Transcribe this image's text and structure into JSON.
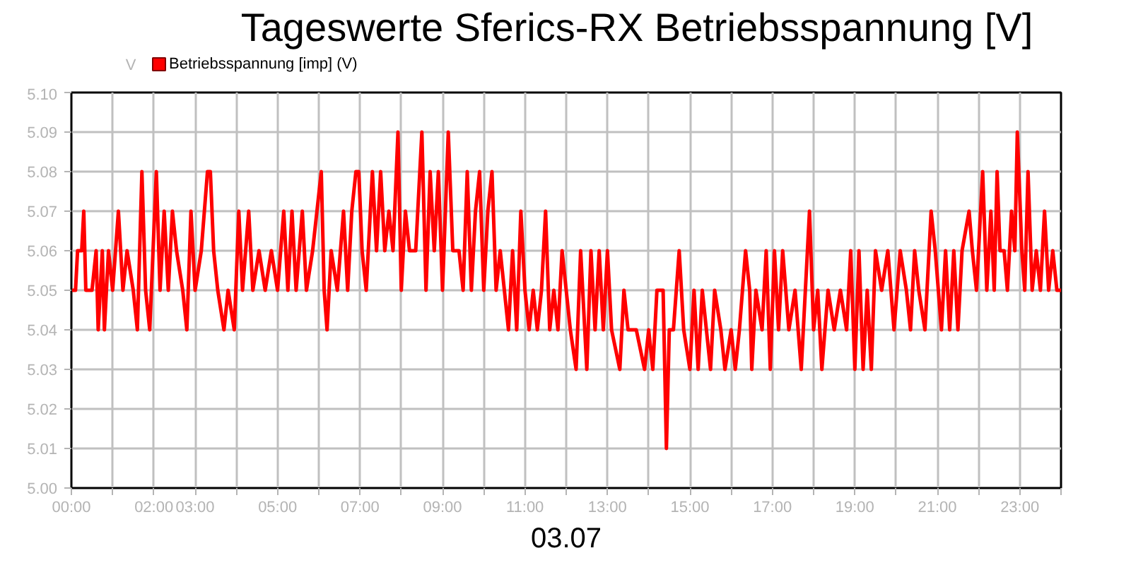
{
  "chart_data": {
    "type": "line",
    "title": "Tageswerte Sferics-RX Betriebsspannung [V]",
    "xlabel": "03.07",
    "ylabel": "V",
    "legend": "top left",
    "grid": true,
    "xlim": [
      0,
      24
    ],
    "ylim": [
      5.0,
      5.1
    ],
    "xticks": [
      {
        "value": 0,
        "label": "00:00"
      },
      {
        "value": 1,
        "label": null
      },
      {
        "value": 2,
        "label": "02:00"
      },
      {
        "value": 3,
        "label": "03:00"
      },
      {
        "value": 4,
        "label": null
      },
      {
        "value": 5,
        "label": "05:00"
      },
      {
        "value": 6,
        "label": null
      },
      {
        "value": 7,
        "label": "07:00"
      },
      {
        "value": 8,
        "label": null
      },
      {
        "value": 9,
        "label": "09:00"
      },
      {
        "value": 10,
        "label": null
      },
      {
        "value": 11,
        "label": "11:00"
      },
      {
        "value": 12,
        "label": null
      },
      {
        "value": 13,
        "label": "13:00"
      },
      {
        "value": 14,
        "label": null
      },
      {
        "value": 15,
        "label": "15:00"
      },
      {
        "value": 16,
        "label": null
      },
      {
        "value": 17,
        "label": "17:00"
      },
      {
        "value": 18,
        "label": null
      },
      {
        "value": 19,
        "label": "19:00"
      },
      {
        "value": 20,
        "label": null
      },
      {
        "value": 21,
        "label": "21:00"
      },
      {
        "value": 22,
        "label": null
      },
      {
        "value": 23,
        "label": "23:00"
      },
      {
        "value": 24,
        "label": null
      }
    ],
    "yticks": [
      {
        "value": 5.0,
        "label": "5.00"
      },
      {
        "value": 5.01,
        "label": "5.01"
      },
      {
        "value": 5.02,
        "label": "5.02"
      },
      {
        "value": 5.03,
        "label": "5.03"
      },
      {
        "value": 5.04,
        "label": "5.04"
      },
      {
        "value": 5.05,
        "label": "5.05"
      },
      {
        "value": 5.06,
        "label": "5.06"
      },
      {
        "value": 5.07,
        "label": "5.07"
      },
      {
        "value": 5.08,
        "label": "5.08"
      },
      {
        "value": 5.09,
        "label": "5.09"
      },
      {
        "value": 5.1,
        "label": "5.10"
      }
    ],
    "x": [
      0.0,
      0.1,
      0.15,
      0.25,
      0.3,
      0.35,
      0.5,
      0.6,
      0.65,
      0.75,
      0.8,
      0.9,
      1.0,
      1.14,
      1.25,
      1.35,
      1.5,
      1.6,
      1.71,
      1.8,
      1.9,
      2.06,
      2.15,
      2.25,
      2.35,
      2.45,
      2.55,
      2.7,
      2.8,
      2.9,
      3.0,
      3.15,
      3.3,
      3.37,
      3.45,
      3.55,
      3.7,
      3.8,
      3.95,
      4.06,
      4.15,
      4.3,
      4.4,
      4.55,
      4.7,
      4.85,
      5.0,
      5.15,
      5.25,
      5.35,
      5.45,
      5.6,
      5.7,
      5.85,
      6.06,
      6.13,
      6.2,
      6.3,
      6.45,
      6.6,
      6.7,
      6.8,
      6.9,
      6.97,
      7.05,
      7.15,
      7.3,
      7.4,
      7.5,
      7.6,
      7.7,
      7.8,
      7.92,
      8.0,
      8.1,
      8.2,
      8.35,
      8.5,
      8.6,
      8.7,
      8.8,
      8.9,
      9.0,
      9.14,
      9.25,
      9.4,
      9.5,
      9.6,
      9.7,
      9.8,
      9.9,
      10.0,
      10.1,
      10.2,
      10.3,
      10.4,
      10.5,
      10.6,
      10.7,
      10.8,
      10.9,
      11.0,
      11.1,
      11.2,
      11.3,
      11.4,
      11.5,
      11.6,
      11.7,
      11.8,
      11.9,
      12.0,
      12.1,
      12.24,
      12.35,
      12.5,
      12.6,
      12.7,
      12.8,
      12.9,
      13.0,
      13.1,
      13.3,
      13.4,
      13.5,
      13.7,
      13.9,
      14.0,
      14.1,
      14.2,
      14.35,
      14.43,
      14.5,
      14.6,
      14.74,
      14.85,
      15.0,
      15.1,
      15.2,
      15.3,
      15.5,
      15.6,
      15.75,
      15.85,
      16.0,
      16.1,
      16.2,
      16.35,
      16.45,
      16.5,
      16.6,
      16.75,
      16.85,
      16.95,
      17.05,
      17.15,
      17.25,
      17.4,
      17.55,
      17.7,
      17.9,
      18.0,
      18.1,
      18.2,
      18.35,
      18.5,
      18.65,
      18.8,
      18.9,
      19.0,
      19.1,
      19.2,
      19.3,
      19.4,
      19.5,
      19.65,
      19.8,
      19.95,
      20.1,
      20.25,
      20.35,
      20.45,
      20.55,
      20.7,
      20.85,
      20.95,
      21.1,
      21.2,
      21.3,
      21.4,
      21.5,
      21.6,
      21.77,
      21.85,
      21.95,
      22.1,
      22.2,
      22.3,
      22.38,
      22.45,
      22.52,
      22.62,
      22.7,
      22.8,
      22.88,
      22.94,
      23.05,
      23.12,
      23.2,
      23.3,
      23.4,
      23.5,
      23.6,
      23.7,
      23.8,
      23.9,
      24.0
    ],
    "series": [
      {
        "name": "Betriebsspannung [imp] (V)",
        "color": "#ff0000",
        "values": [
          5.05,
          5.05,
          5.06,
          5.06,
          5.07,
          5.05,
          5.05,
          5.06,
          5.04,
          5.06,
          5.04,
          5.06,
          5.05,
          5.07,
          5.05,
          5.06,
          5.05,
          5.04,
          5.08,
          5.05,
          5.04,
          5.08,
          5.05,
          5.07,
          5.05,
          5.07,
          5.06,
          5.05,
          5.04,
          5.07,
          5.05,
          5.06,
          5.08,
          5.08,
          5.06,
          5.05,
          5.04,
          5.05,
          5.04,
          5.07,
          5.05,
          5.07,
          5.05,
          5.06,
          5.05,
          5.06,
          5.05,
          5.07,
          5.05,
          5.07,
          5.05,
          5.07,
          5.05,
          5.06,
          5.08,
          5.05,
          5.04,
          5.06,
          5.05,
          5.07,
          5.05,
          5.07,
          5.08,
          5.08,
          5.06,
          5.05,
          5.08,
          5.06,
          5.08,
          5.06,
          5.07,
          5.06,
          5.09,
          5.05,
          5.07,
          5.06,
          5.06,
          5.09,
          5.05,
          5.08,
          5.06,
          5.08,
          5.05,
          5.09,
          5.06,
          5.06,
          5.05,
          5.08,
          5.05,
          5.07,
          5.08,
          5.05,
          5.07,
          5.08,
          5.05,
          5.06,
          5.05,
          5.04,
          5.06,
          5.04,
          5.07,
          5.05,
          5.04,
          5.05,
          5.04,
          5.05,
          5.07,
          5.04,
          5.05,
          5.04,
          5.06,
          5.05,
          5.04,
          5.03,
          5.06,
          5.03,
          5.06,
          5.04,
          5.06,
          5.04,
          5.06,
          5.04,
          5.03,
          5.05,
          5.04,
          5.04,
          5.03,
          5.04,
          5.03,
          5.05,
          5.05,
          5.01,
          5.04,
          5.04,
          5.06,
          5.04,
          5.03,
          5.05,
          5.03,
          5.05,
          5.03,
          5.05,
          5.04,
          5.03,
          5.04,
          5.03,
          5.04,
          5.06,
          5.05,
          5.03,
          5.05,
          5.04,
          5.06,
          5.03,
          5.06,
          5.04,
          5.06,
          5.04,
          5.05,
          5.03,
          5.07,
          5.04,
          5.05,
          5.03,
          5.05,
          5.04,
          5.05,
          5.04,
          5.06,
          5.03,
          5.06,
          5.03,
          5.05,
          5.03,
          5.06,
          5.05,
          5.06,
          5.04,
          5.06,
          5.05,
          5.04,
          5.06,
          5.05,
          5.04,
          5.07,
          5.06,
          5.04,
          5.06,
          5.04,
          5.06,
          5.04,
          5.06,
          5.07,
          5.06,
          5.05,
          5.08,
          5.05,
          5.07,
          5.05,
          5.08,
          5.06,
          5.06,
          5.05,
          5.07,
          5.06,
          5.09,
          5.06,
          5.05,
          5.08,
          5.05,
          5.06,
          5.05,
          5.07,
          5.05,
          5.06,
          5.05,
          5.05
        ]
      }
    ]
  }
}
